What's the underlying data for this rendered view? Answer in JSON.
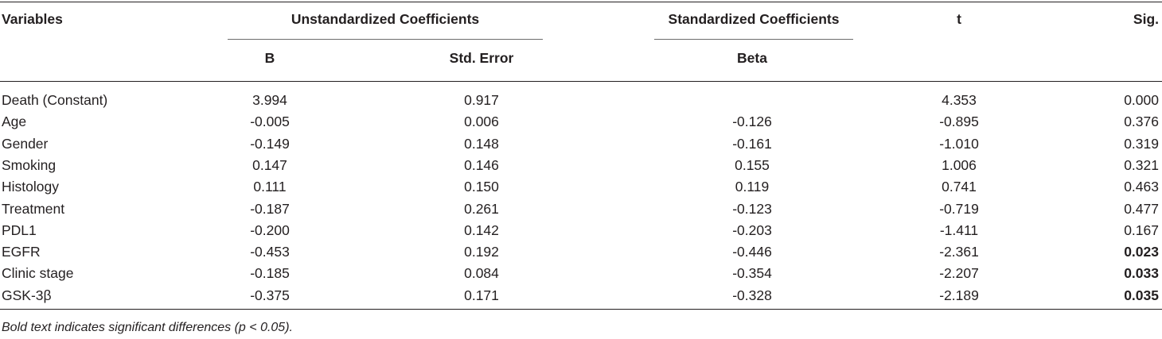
{
  "table": {
    "headers": {
      "variables": "Variables",
      "unstandardized": "Unstandardized Coefficients",
      "standardized": "Standardized Coefficients",
      "t": "t",
      "sig": "Sig.",
      "b": "B",
      "std_error": "Std. Error",
      "beta": "Beta"
    },
    "rows": [
      {
        "variable": "Death (Constant)",
        "b": "3.994",
        "std_error": "0.917",
        "beta": "",
        "t": "4.353",
        "sig": "0.000",
        "significant": false
      },
      {
        "variable": "Age",
        "b": "-0.005",
        "std_error": "0.006",
        "beta": "-0.126",
        "t": "-0.895",
        "sig": "0.376",
        "significant": false
      },
      {
        "variable": "Gender",
        "b": "-0.149",
        "std_error": "0.148",
        "beta": "-0.161",
        "t": "-1.010",
        "sig": "0.319",
        "significant": false
      },
      {
        "variable": "Smoking",
        "b": "0.147",
        "std_error": "0.146",
        "beta": "0.155",
        "t": "1.006",
        "sig": "0.321",
        "significant": false
      },
      {
        "variable": "Histology",
        "b": "0.111",
        "std_error": "0.150",
        "beta": "0.119",
        "t": "0.741",
        "sig": "0.463",
        "significant": false
      },
      {
        "variable": "Treatment",
        "b": "-0.187",
        "std_error": "0.261",
        "beta": "-0.123",
        "t": "-0.719",
        "sig": "0.477",
        "significant": false
      },
      {
        "variable": "PDL1",
        "b": "-0.200",
        "std_error": "0.142",
        "beta": "-0.203",
        "t": "-1.411",
        "sig": "0.167",
        "significant": false
      },
      {
        "variable": "EGFR",
        "b": "-0.453",
        "std_error": "0.192",
        "beta": "-0.446",
        "t": "-2.361",
        "sig": "0.023",
        "significant": true
      },
      {
        "variable": "Clinic stage",
        "b": "-0.185",
        "std_error": "0.084",
        "beta": "-0.354",
        "t": "-2.207",
        "sig": "0.033",
        "significant": true
      },
      {
        "variable": "GSK-3β",
        "b": "-0.375",
        "std_error": "0.171",
        "beta": "-0.328",
        "t": "-2.189",
        "sig": "0.035",
        "significant": true
      }
    ]
  },
  "footnote": "Bold text indicates significant differences (p < 0.05)."
}
